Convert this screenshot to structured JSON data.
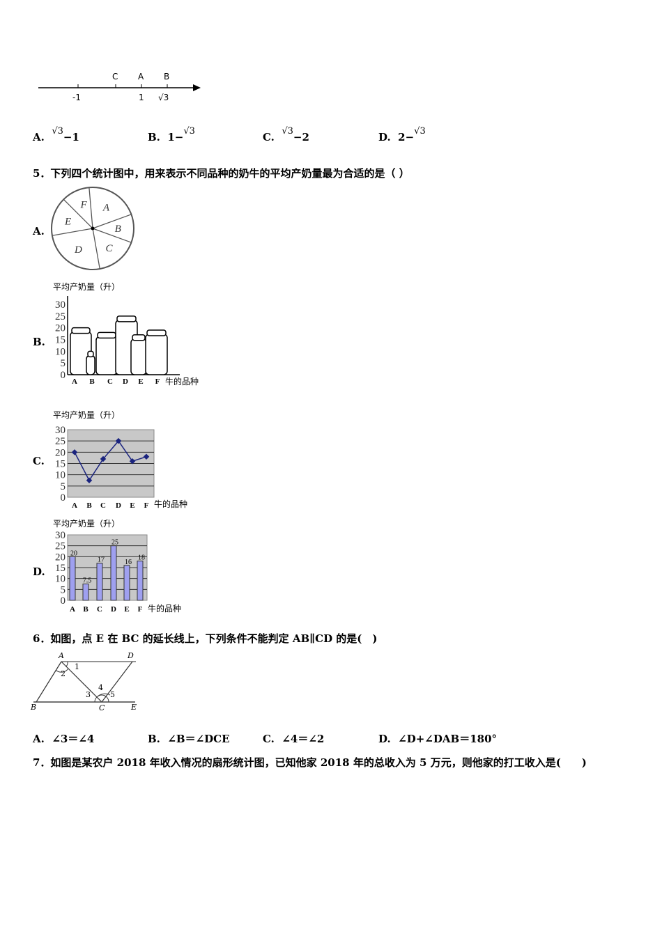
{
  "number_line": {
    "points": [
      "C",
      "A",
      "B"
    ],
    "ticks": [
      "-1",
      "1",
      "√3"
    ]
  },
  "q4_options": [
    {
      "letter": "A.",
      "pre": "",
      "root": "√3",
      "post": "−1"
    },
    {
      "letter": "B.",
      "pre": "1−",
      "root": "√3",
      "post": ""
    },
    {
      "letter": "C.",
      "pre": "",
      "root": "√3",
      "post": "−2"
    },
    {
      "letter": "D.",
      "pre": "2−",
      "root": "√3",
      "post": ""
    }
  ],
  "q5": {
    "text": "5．下列四个统计图中，用来表示不同品种的奶牛的平均产奶量最为合适的是（ ）",
    "option_letters": [
      "A.",
      "B.",
      "C.",
      "D."
    ],
    "pie_labels": [
      "A",
      "B",
      "C",
      "D",
      "E",
      "F"
    ],
    "ylabel": "平均产奶量（升）",
    "xlabel": "牛的品种"
  },
  "chart_data": [
    {
      "type": "pie",
      "labels": [
        "A",
        "B",
        "C",
        "D",
        "E",
        "F"
      ]
    },
    {
      "type": "bar",
      "style": "pictograph",
      "ylabel": "平均产奶量（升）",
      "xlabel": "牛的品种",
      "categories": [
        "A",
        "B",
        "C",
        "D",
        "E",
        "F"
      ],
      "values": [
        20,
        10,
        18,
        25,
        17,
        19
      ],
      "yticks": [
        "0",
        "5",
        "10",
        "15",
        "20",
        "25",
        "30"
      ],
      "ylim": [
        0,
        30
      ]
    },
    {
      "type": "line",
      "ylabel": "平均产奶量（升）",
      "xlabel": "牛的品种",
      "categories": [
        "A",
        "B",
        "C",
        "D",
        "E",
        "F"
      ],
      "values": [
        20,
        7.5,
        17,
        25,
        16,
        18
      ],
      "yticks": [
        "0",
        "5",
        "10",
        "15",
        "20",
        "25",
        "30"
      ],
      "ylim": [
        0,
        30
      ],
      "grid": true,
      "color": "#1a237e"
    },
    {
      "type": "bar",
      "ylabel": "平均产奶量（升）",
      "xlabel": "牛的品种",
      "categories": [
        "A",
        "B",
        "C",
        "D",
        "E",
        "F"
      ],
      "values": [
        20,
        7.5,
        17,
        25,
        16,
        18
      ],
      "data_labels": [
        "20",
        "7.5",
        "17",
        "25",
        "16",
        "18"
      ],
      "yticks": [
        "0",
        "5",
        "10",
        "15",
        "20",
        "25",
        "30"
      ],
      "ylim": [
        0,
        30
      ],
      "grid": true,
      "color": "#9fa0f0"
    }
  ],
  "q6": {
    "text": "6．如图，点 E 在 BC 的延长线上，下列条件不能判定 AB∥CD 的是(　)",
    "figure_labels": {
      "A": "A",
      "B": "B",
      "C": "C",
      "D": "D",
      "E": "E",
      "a1": "1",
      "a2": "2",
      "a3": "3",
      "a4": "4",
      "a5": "5"
    },
    "options": [
      {
        "letter": "A.",
        "text": "∠3＝∠4"
      },
      {
        "letter": "B.",
        "text": "∠B＝∠DCE"
      },
      {
        "letter": "C.",
        "text": "∠4＝∠2"
      },
      {
        "letter": "D.",
        "text": "∠D+∠DAB＝180°"
      }
    ]
  },
  "q7": {
    "text": "7．如图是某农户 2018 年收入情况的扇形统计图，已知他家 2018 年的总收入为 5 万元，则他家的打工收入是(　　)"
  }
}
